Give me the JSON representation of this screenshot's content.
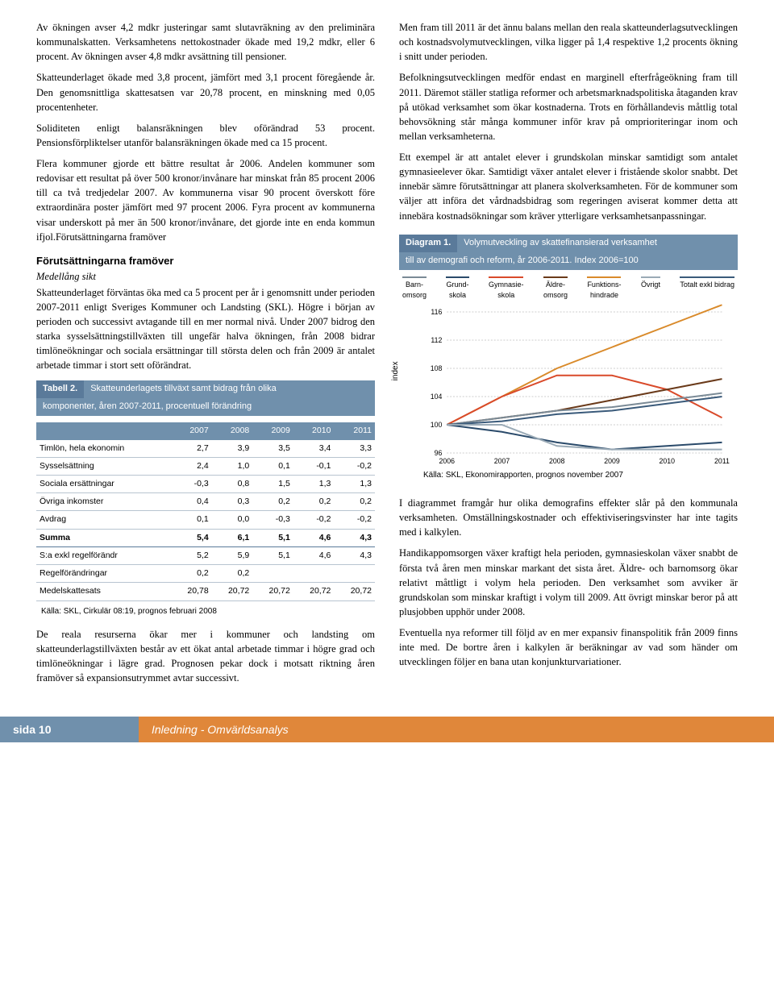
{
  "left": {
    "p1": "Av ökningen avser 4,2 mdkr justeringar samt slutavräkning av den preliminära kommunalskatten. Verksamhetens nettokostnader ökade med 19,2 mdkr, eller 6 procent. Av ökningen avser 4,8 mdkr avsättning till pensioner.",
    "p2": "Skatteunderlaget ökade med 3,8 procent, jämfört med 3,1 procent föregående år. Den genomsnittliga skattesatsen var 20,78 procent, en minskning med 0,05 procentenheter.",
    "p3": "Soliditeten enligt balansräkningen blev oförändrad 53 procent. Pensionsförpliktelser utanför balansräkningen ökade med ca 15 procent.",
    "p4": "Flera kommuner gjorde ett bättre resultat år 2006. Andelen kommuner som redovisar ett resultat på över 500 kronor/invånare har minskat från 85 procent 2006 till ca två tredjedelar 2007. Av kommunerna visar 90 procent överskott före extraordinära poster jämfört med 97 procent 2006. Fyra procent av kommunerna visar underskott på mer än 500 kronor/invånare, det gjorde inte en enda kommun ifjol.Förutsättningarna framöver",
    "secTitle": "Förutsättningarna framöver",
    "secSub": "Medellång sikt",
    "p5": "Skatteunderlaget förväntas öka med ca 5 procent per år i genomsnitt under perioden 2007-2011 enligt Sveriges Kommuner och Landsting (SKL). Högre i början av perioden och successivt avtagande till en mer normal nivå. Under 2007 bidrog den starka sysselsättningstillväxten till ungefär halva ökningen, från 2008 bidrar timlöneökningar och sociala ersättningar till största delen och från 2009 är antalet arbetade timmar i stort sett oförändrat.",
    "p6": "De reala resurserna ökar mer i kommuner och landsting om skatteunderlagstillväxten består av ett ökat antal arbetade timmar i högre grad och timlöneökningar i lägre grad. Prognosen pekar dock i motsatt riktning åren framöver så expansionsutrymmet avtar successivt."
  },
  "right": {
    "p1": "Men fram till 2011 är det ännu balans mellan den reala skatteunderlagsutvecklingen och kostnadsvolymutvecklingen, vilka ligger på 1,4 respektive 1,2 procents ökning i snitt under perioden.",
    "p2": "Befolkningsutvecklingen medför endast en marginell efterfrågeökning fram till 2011. Däremot ställer statliga reformer och arbetsmarknadspolitiska åtaganden krav på utökad verksamhet som ökar kostnaderna. Trots en förhållandevis måttlig total behovsökning står många kommuner inför krav på omprioriteringar inom och mellan verksamheterna.",
    "p3": "Ett exempel är att antalet elever i grundskolan minskar samtidigt som antalet gymnasieelever ökar. Samtidigt växer antalet elever i fristående skolor snabbt. Det innebär sämre förutsättningar att planera skolverksamheten. För de kommuner som väljer att införa det vårdnadsbidrag som regeringen aviserat kommer detta att innebära kostnadsökningar som kräver ytterligare verksamhetsanpassningar.",
    "p4": "I diagrammet framgår hur olika demografins effekter slår på den kommunala verksamheten. Omställningskostnader och effektiviseringsvinster har inte tagits med i kalkylen.",
    "p5": "Handikappomsorgen växer kraftigt hela perioden, gymnasieskolan växer snabbt de första två åren men minskar markant det sista året. Äldre- och barnomsorg ökar relativt måttligt i volym hela perioden. Den verksamhet som avviker är grundskolan som minskar kraftigt i volym till 2009. Att övrigt minskar beror på att plusjobben upphör under 2008.",
    "p6": "Eventuella nya reformer till följd av en mer expansiv finanspolitik från 2009 finns inte med. De bortre åren i kalkylen är beräkningar av vad som händer om utvecklingen följer en bana utan konjunkturvariationer."
  },
  "diagram": {
    "label": "Diagram 1.",
    "title": "Volymutveckling av skattefinansierad verksamhet",
    "subtitle": "till av demografi och reform, år 2006-2011. Index 2006=100",
    "legend": [
      {
        "l": "Barn-omsorg",
        "c": "#7a8a96"
      },
      {
        "l": "Grund-skola",
        "c": "#2a4a6a"
      },
      {
        "l": "Gymnasie-skola",
        "c": "#d94a2a"
      },
      {
        "l": "Äldre-omsorg",
        "c": "#6a3a1a"
      },
      {
        "l": "Funktions-hindrade",
        "c": "#d98a2a"
      },
      {
        "l": "Övrigt",
        "c": "#9aaab6"
      },
      {
        "l": "Totalt exkl bidrag",
        "c": "#3a5a7a"
      }
    ],
    "ylabel": "index",
    "yticks": [
      96,
      100,
      104,
      108,
      112,
      116
    ],
    "xticks": [
      2006,
      2007,
      2008,
      2009,
      2010,
      2011
    ],
    "source": "Källa: SKL, Ekonomirapporten, prognos november 2007",
    "series": [
      {
        "c": "#d98a2a",
        "pts": [
          100,
          104,
          108,
          111,
          114,
          117
        ]
      },
      {
        "c": "#d94a2a",
        "pts": [
          100,
          104,
          107,
          107,
          105,
          101
        ]
      },
      {
        "c": "#6a3a1a",
        "pts": [
          100,
          101,
          102,
          103.5,
          105,
          106.5
        ]
      },
      {
        "c": "#7a8a96",
        "pts": [
          100,
          101,
          102,
          102.5,
          103.5,
          104.5
        ]
      },
      {
        "c": "#3a5a7a",
        "pts": [
          100,
          100.5,
          101.5,
          102,
          103,
          104
        ]
      },
      {
        "c": "#2a4a6a",
        "pts": [
          100,
          99,
          97.5,
          96.5,
          97,
          97.5
        ]
      },
      {
        "c": "#9aaab6",
        "pts": [
          100,
          100,
          97,
          96.5,
          96.5,
          96.5
        ]
      }
    ]
  },
  "table": {
    "label": "Tabell 2.",
    "title": "Skatteunderlagets tillväxt samt bidrag från olika",
    "subtitle": "komponenter, åren 2007-2011, procentuell förändring",
    "headers": [
      "",
      "2007",
      "2008",
      "2009",
      "2010",
      "2011"
    ],
    "rows": [
      [
        "Timlön, hela ekonomin",
        "2,7",
        "3,9",
        "3,5",
        "3,4",
        "3,3"
      ],
      [
        "Sysselsättning",
        "2,4",
        "1,0",
        "0,1",
        "-0,1",
        "-0,2"
      ],
      [
        "Sociala ersättningar",
        "-0,3",
        "0,8",
        "1,5",
        "1,3",
        "1,3"
      ],
      [
        "Övriga inkomster",
        "0,4",
        "0,3",
        "0,2",
        "0,2",
        "0,2"
      ],
      [
        "Avdrag",
        "0,1",
        "0,0",
        "-0,3",
        "-0,2",
        "-0,2"
      ]
    ],
    "sum": [
      "Summa",
      "5,4",
      "6,1",
      "5,1",
      "4,6",
      "4,3"
    ],
    "rows2": [
      [
        "S:a exkl regelförändr",
        "5,2",
        "5,9",
        "5,1",
        "4,6",
        "4,3"
      ],
      [
        "Regelförändringar",
        "0,2",
        "0,2",
        "",
        "",
        ""
      ],
      [
        "Medelskattesats",
        "20,78",
        "20,72",
        "20,72",
        "20,72",
        "20,72"
      ]
    ],
    "source": "Källa: SKL, Cirkulär 08:19, prognos februari 2008"
  },
  "footer": {
    "left": "sida 10",
    "right": "Inledning - Omvärldsanalys"
  }
}
